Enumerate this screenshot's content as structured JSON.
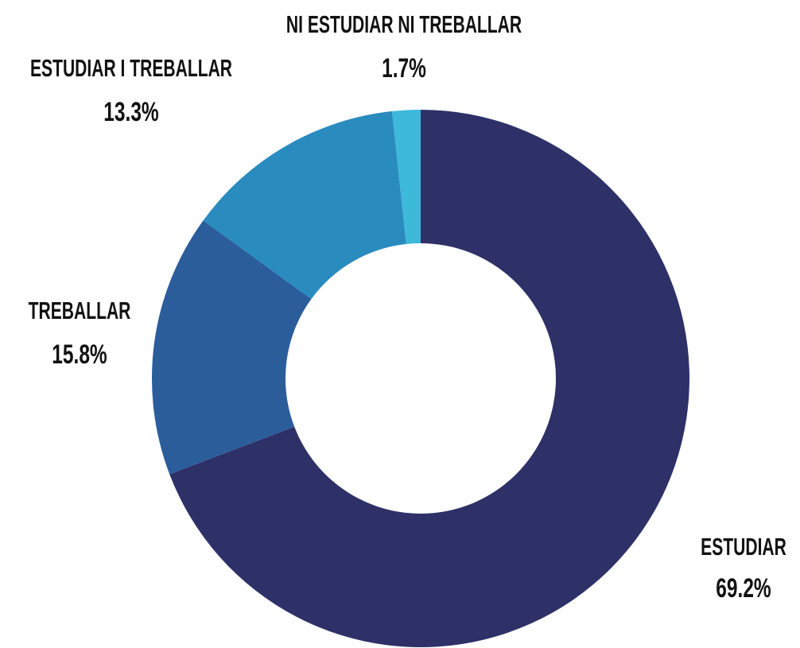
{
  "chart_data": {
    "type": "donut",
    "categories": [
      "ESTUDIAR",
      "TREBALLAR",
      "ESTUDIAR I TREBALLAR",
      "NI ESTUDIAR NI TREBALLAR"
    ],
    "values": [
      69.2,
      15.8,
      13.3,
      1.7
    ],
    "value_labels": [
      "69.2%",
      "15.8%",
      "13.3%",
      "1.7%"
    ],
    "colors": [
      "#2e3168",
      "#2b5d9b",
      "#2a8bbf",
      "#3db9da"
    ]
  }
}
